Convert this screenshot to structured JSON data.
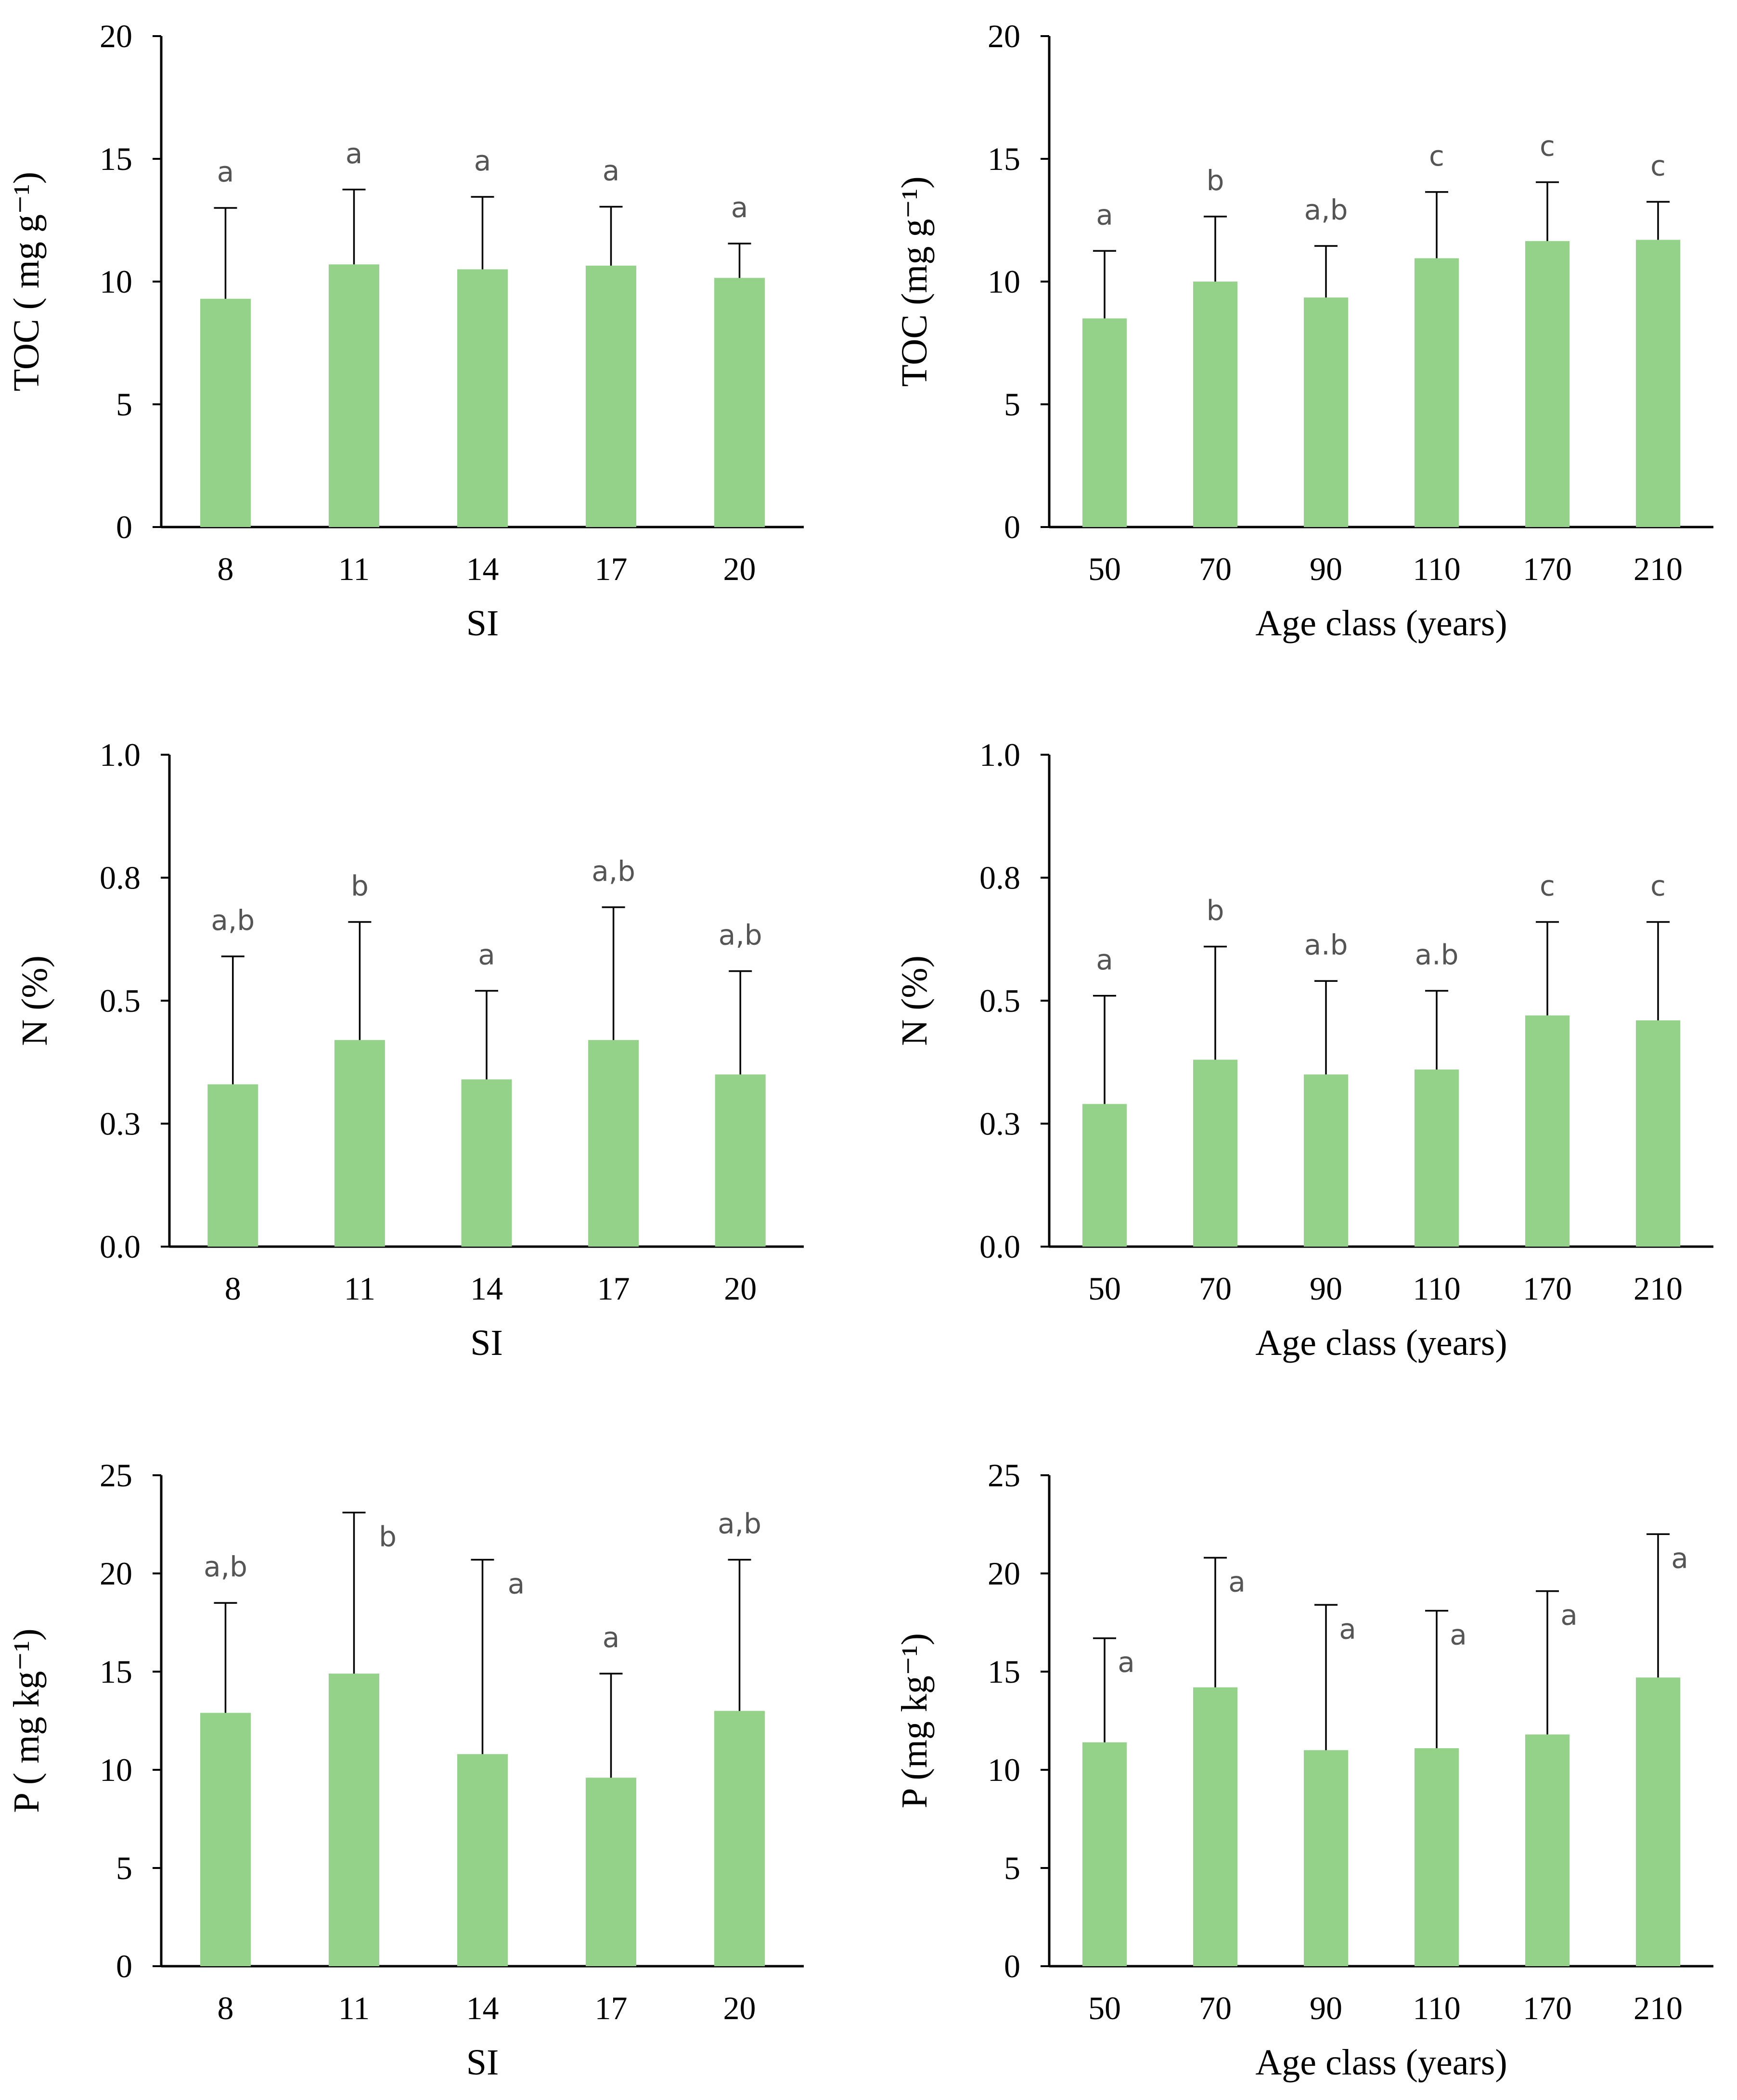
{
  "colors": {
    "bar": "#94d28a",
    "axis": "#000000",
    "sig_text": "#555555"
  },
  "chart_data": [
    {
      "id": "toc-si",
      "type": "bar",
      "title": "",
      "xlabel": "SI",
      "ylabel": "TOC ( mg g⁻¹)",
      "categories": [
        "8",
        "11",
        "14",
        "17",
        "20"
      ],
      "values": [
        9.3,
        10.7,
        10.5,
        10.65,
        10.15
      ],
      "errors": [
        3.7,
        3.05,
        2.95,
        2.4,
        1.4
      ],
      "significance": [
        "a",
        "a",
        "a",
        "a",
        "a"
      ],
      "ylim": [
        0,
        20
      ],
      "yticks": [
        "0",
        "5",
        "10",
        "15",
        "20"
      ],
      "ytick_values": [
        0,
        5,
        10,
        15,
        20
      ]
    },
    {
      "id": "toc-age",
      "type": "bar",
      "title": "",
      "xlabel": "Age class (years)",
      "ylabel": "TOC (mg g⁻¹)",
      "categories": [
        "50",
        "70",
        "90",
        "110",
        "170",
        "210"
      ],
      "values": [
        8.5,
        10.0,
        9.35,
        10.95,
        11.65,
        11.7
      ],
      "errors": [
        2.75,
        2.65,
        2.1,
        2.7,
        2.4,
        1.55
      ],
      "significance": [
        "a",
        "b",
        "a,b",
        "c",
        "c",
        "c"
      ],
      "ylim": [
        0,
        20
      ],
      "yticks": [
        "0",
        "5",
        "10",
        "15",
        "20"
      ],
      "ytick_values": [
        0,
        5,
        10,
        15,
        20
      ]
    },
    {
      "id": "n-si",
      "type": "bar",
      "title": "",
      "xlabel": "SI",
      "ylabel": "N (%)",
      "categories": [
        "8",
        "11",
        "14",
        "17",
        "20"
      ],
      "values": [
        0.33,
        0.42,
        0.34,
        0.42,
        0.35
      ],
      "errors": [
        0.26,
        0.24,
        0.18,
        0.27,
        0.21
      ],
      "significance": [
        "a,b",
        "b",
        "a",
        "a,b",
        "a,b"
      ],
      "ylim": [
        0,
        1.0
      ],
      "yticks": [
        "0.0",
        "0.3",
        "0.5",
        "0.8",
        "1.0"
      ],
      "ytick_values": [
        0,
        0.25,
        0.5,
        0.75,
        1.0
      ]
    },
    {
      "id": "n-age",
      "type": "bar",
      "title": "",
      "xlabel": "Age class (years)",
      "ylabel": "N (%)",
      "categories": [
        "50",
        "70",
        "90",
        "110",
        "170",
        "210"
      ],
      "values": [
        0.29,
        0.38,
        0.35,
        0.36,
        0.47,
        0.46
      ],
      "errors": [
        0.22,
        0.23,
        0.19,
        0.16,
        0.19,
        0.2
      ],
      "significance": [
        "a",
        "b",
        "a.b",
        "a.b",
        "c",
        "c"
      ],
      "ylim": [
        0,
        1.0
      ],
      "yticks": [
        "0.0",
        "0.3",
        "0.5",
        "0.8",
        "1.0"
      ],
      "ytick_values": [
        0,
        0.25,
        0.5,
        0.75,
        1.0
      ]
    },
    {
      "id": "p-si",
      "type": "bar",
      "title": "",
      "xlabel": "SI",
      "ylabel": "P ( mg kg⁻¹)",
      "categories": [
        "8",
        "11",
        "14",
        "17",
        "20"
      ],
      "values": [
        12.9,
        14.9,
        10.8,
        9.6,
        13.0
      ],
      "errors": [
        5.6,
        8.2,
        9.9,
        5.3,
        7.7
      ],
      "significance": [
        "a,b",
        "b",
        "a",
        "a",
        "a,b"
      ],
      "ylim": [
        0,
        25
      ],
      "yticks": [
        "0",
        "5",
        "10",
        "15",
        "20",
        "25"
      ],
      "ytick_values": [
        0,
        5,
        10,
        15,
        20,
        25
      ]
    },
    {
      "id": "p-age",
      "type": "bar",
      "title": "",
      "xlabel": "Age class (years)",
      "ylabel": "P (mg kg⁻¹)",
      "categories": [
        "50",
        "70",
        "90",
        "110",
        "170",
        "210"
      ],
      "values": [
        11.4,
        14.2,
        11.0,
        11.1,
        11.8,
        14.7
      ],
      "errors": [
        5.3,
        6.6,
        7.4,
        7.0,
        7.3,
        7.3
      ],
      "significance": [
        "a",
        "a",
        "a",
        "a",
        "a",
        "a"
      ],
      "ylim": [
        0,
        25
      ],
      "yticks": [
        "0",
        "5",
        "10",
        "15",
        "20",
        "25"
      ],
      "ytick_values": [
        0,
        5,
        10,
        15,
        20,
        25
      ]
    }
  ]
}
